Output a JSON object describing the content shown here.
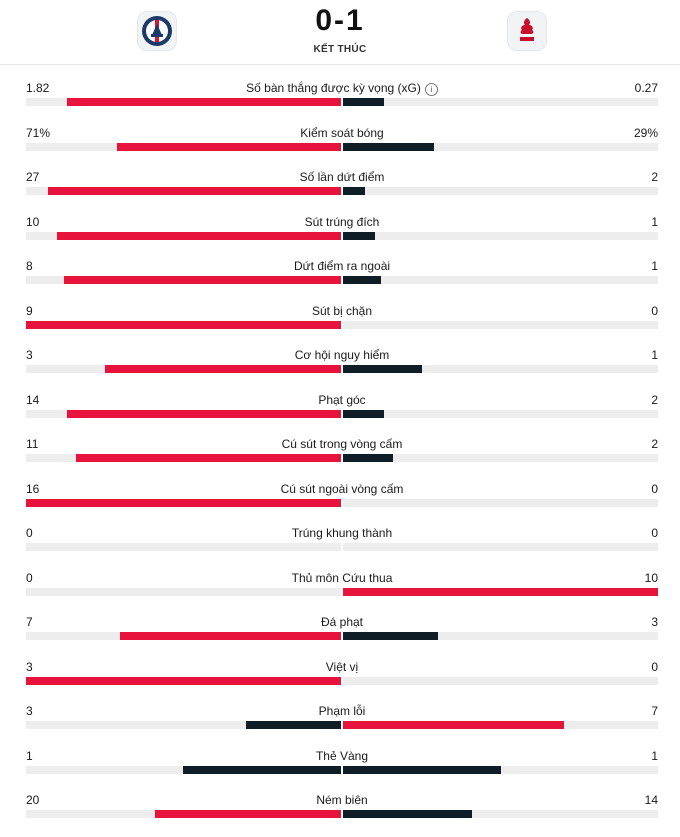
{
  "match": {
    "score": "0-1",
    "status": "KẾT THÚC",
    "home_crest_icon": "psg-crest-icon",
    "away_crest_icon": "liverpool-crest-icon"
  },
  "colors": {
    "red": "#e8133c",
    "navy": "#0f1d26",
    "track": "#ededed"
  },
  "stats": [
    {
      "label": "Số bàn thắng được kỳ vọng (xG)",
      "home": "1.82",
      "away": "0.27",
      "home_pct": 0.87,
      "away_pct": 0.13,
      "home_color": "red",
      "away_color": "navy",
      "info": true
    },
    {
      "label": "Kiểm soát bóng",
      "home": "71%",
      "away": "29%",
      "home_pct": 0.71,
      "away_pct": 0.29,
      "home_color": "red",
      "away_color": "navy"
    },
    {
      "label": "Số lần dứt điểm",
      "home": "27",
      "away": "2",
      "home_pct": 0.93,
      "away_pct": 0.07,
      "home_color": "red",
      "away_color": "navy"
    },
    {
      "label": "Sút trúng đích",
      "home": "10",
      "away": "1",
      "home_pct": 0.9,
      "away_pct": 0.1,
      "home_color": "red",
      "away_color": "navy"
    },
    {
      "label": "Dứt điểm ra ngoài",
      "home": "8",
      "away": "1",
      "home_pct": 0.88,
      "away_pct": 0.12,
      "home_color": "red",
      "away_color": "navy"
    },
    {
      "label": "Sút bị chặn",
      "home": "9",
      "away": "0",
      "home_pct": 1.0,
      "away_pct": 0.0,
      "home_color": "red",
      "away_color": "navy"
    },
    {
      "label": "Cơ hội nguy hiểm",
      "home": "3",
      "away": "1",
      "home_pct": 0.75,
      "away_pct": 0.25,
      "home_color": "red",
      "away_color": "navy"
    },
    {
      "label": "Phạt góc",
      "home": "14",
      "away": "2",
      "home_pct": 0.87,
      "away_pct": 0.13,
      "home_color": "red",
      "away_color": "navy"
    },
    {
      "label": "Cú sút trong vòng cấm",
      "home": "11",
      "away": "2",
      "home_pct": 0.84,
      "away_pct": 0.16,
      "home_color": "red",
      "away_color": "navy"
    },
    {
      "label": "Cú sút ngoài vòng cấm",
      "home": "16",
      "away": "0",
      "home_pct": 1.0,
      "away_pct": 0.0,
      "home_color": "red",
      "away_color": "navy"
    },
    {
      "label": "Trúng khung thành",
      "home": "0",
      "away": "0",
      "home_pct": 0.0,
      "away_pct": 0.0,
      "home_color": "red",
      "away_color": "navy"
    },
    {
      "label": "Thủ môn Cứu thua",
      "home": "0",
      "away": "10",
      "home_pct": 0.0,
      "away_pct": 1.0,
      "home_color": "navy",
      "away_color": "red"
    },
    {
      "label": "Đá phạt",
      "home": "7",
      "away": "3",
      "home_pct": 0.7,
      "away_pct": 0.3,
      "home_color": "red",
      "away_color": "navy"
    },
    {
      "label": "Việt vị",
      "home": "3",
      "away": "0",
      "home_pct": 1.0,
      "away_pct": 0.0,
      "home_color": "red",
      "away_color": "navy"
    },
    {
      "label": "Phạm lỗi",
      "home": "3",
      "away": "7",
      "home_pct": 0.3,
      "away_pct": 0.7,
      "home_color": "navy",
      "away_color": "red"
    },
    {
      "label": "Thẻ Vàng",
      "home": "1",
      "away": "1",
      "home_pct": 0.5,
      "away_pct": 0.5,
      "home_color": "navy",
      "away_color": "navy"
    },
    {
      "label": "Ném biên",
      "home": "20",
      "away": "14",
      "home_pct": 0.59,
      "away_pct": 0.41,
      "home_color": "red",
      "away_color": "navy"
    }
  ]
}
